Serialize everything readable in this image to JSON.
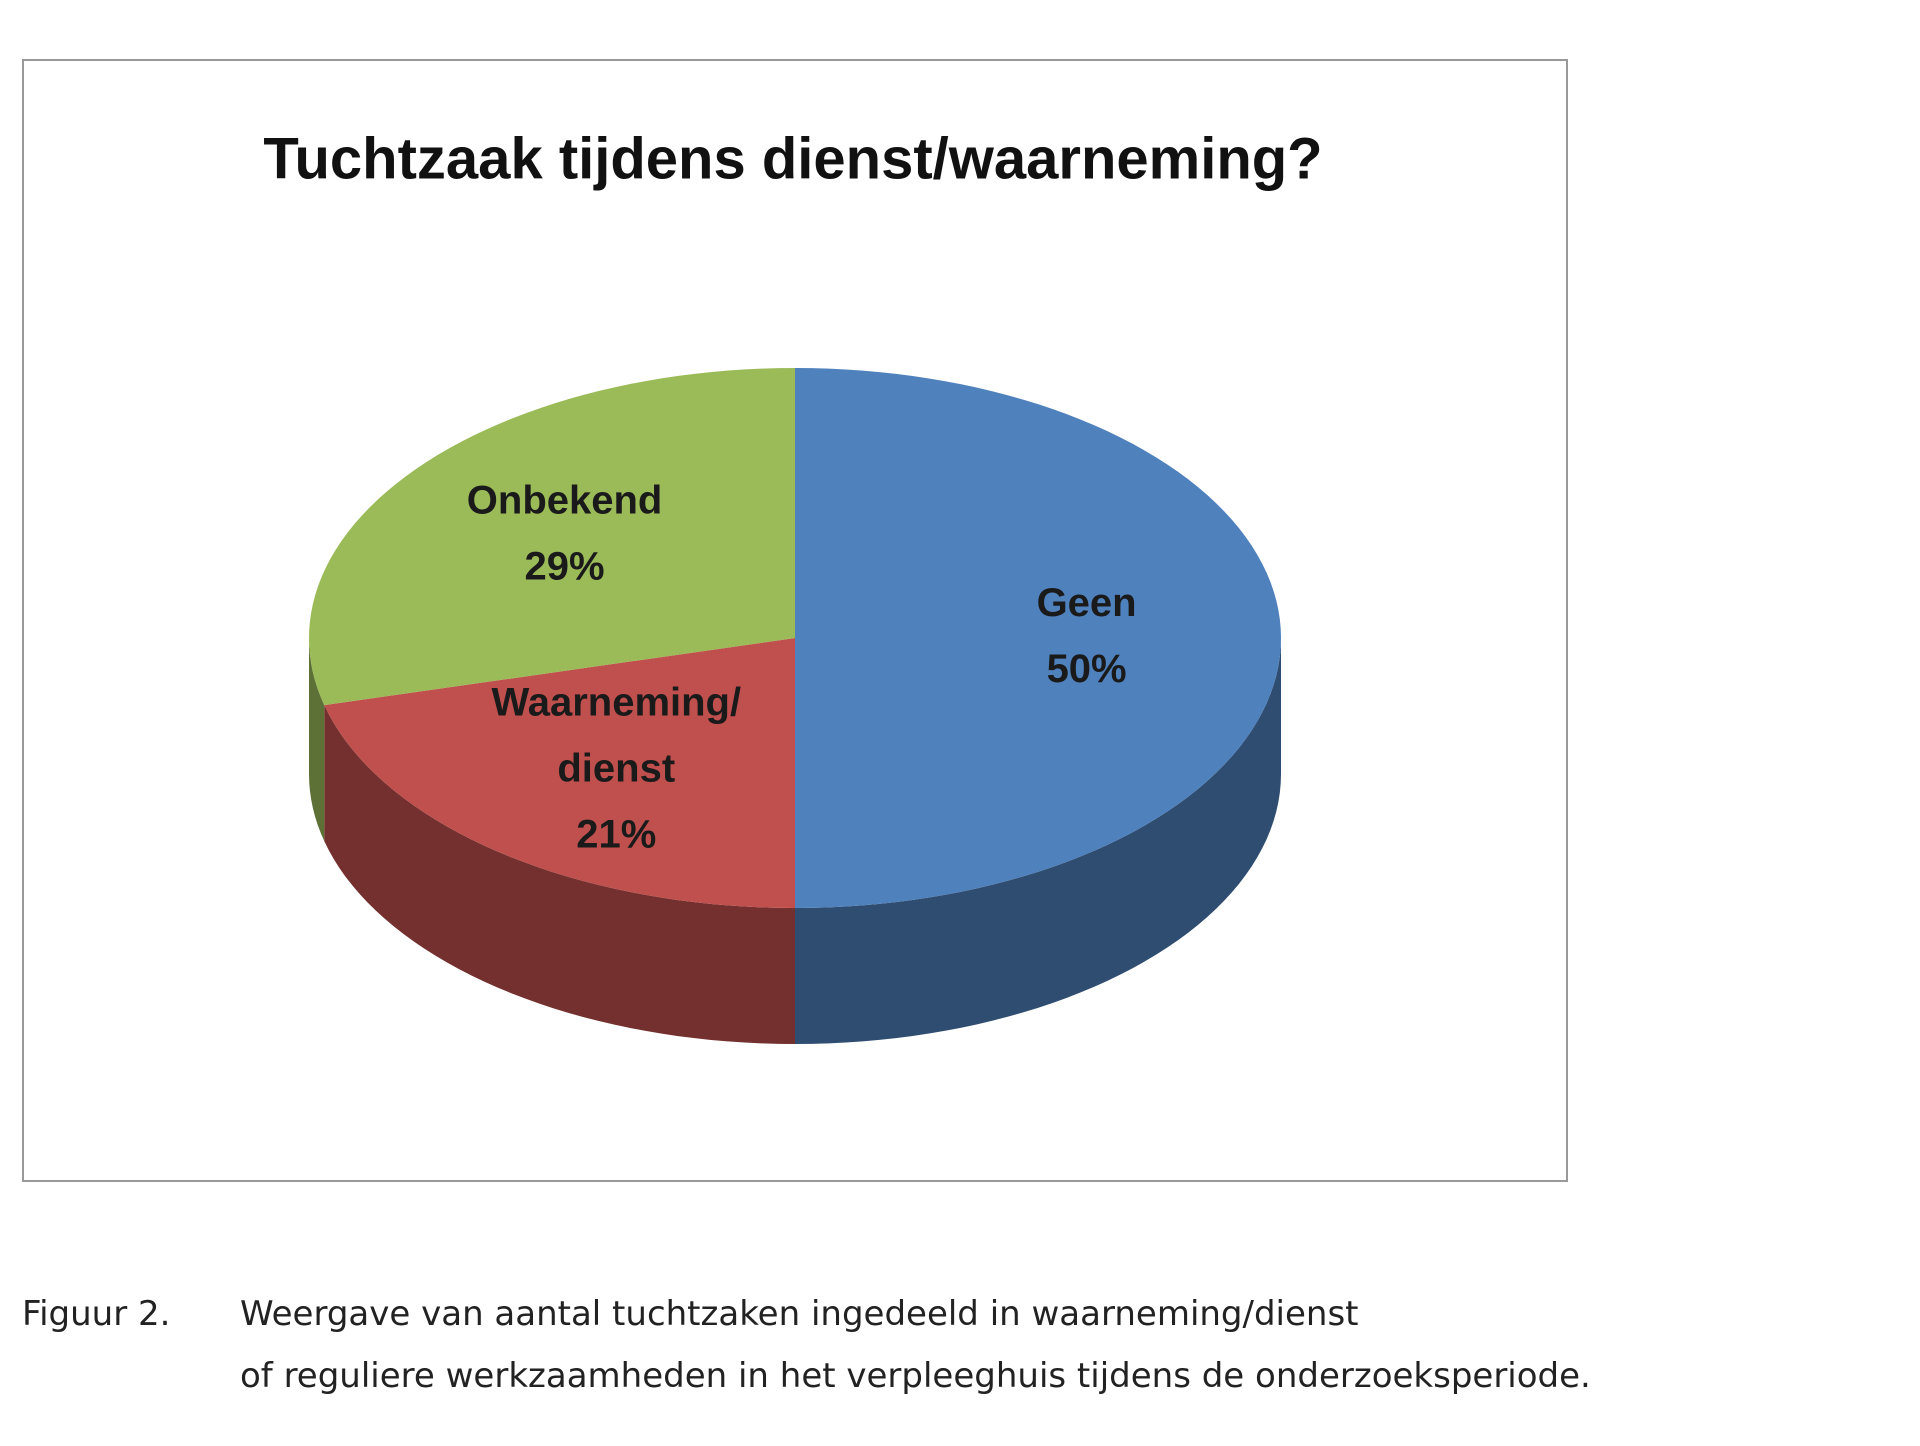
{
  "chart_data": {
    "type": "pie",
    "title": "Tuchtzaak tijdens dienst/waarneming?",
    "categories": [
      "Geen",
      "Waarneming/\ndienst",
      "Onbekend"
    ],
    "values": [
      50,
      21,
      29
    ],
    "value_labels": [
      "50%",
      "21%",
      "29%"
    ],
    "colors": [
      "#4f81bd",
      "#c0504d",
      "#9bbb59"
    ],
    "three_d": true
  },
  "caption": {
    "label": "Figuur 2.",
    "lines": [
      "Weergave van aantal tuchtzaken ingedeeld in waarneming/dienst",
      "of reguliere werkzaamheden in het verpleeghuis tijdens de onderzoeksperiode."
    ]
  }
}
